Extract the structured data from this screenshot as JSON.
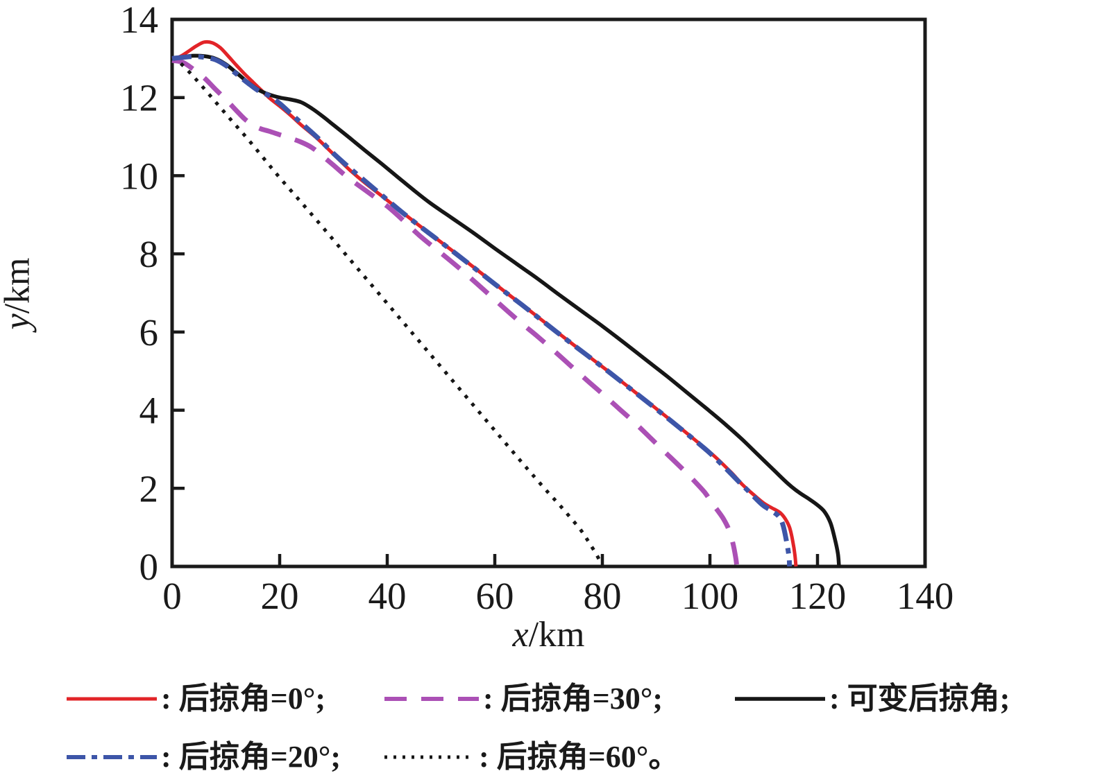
{
  "figure_background": "#ffffff",
  "axis_color": "#1a1a1a",
  "chart_data": {
    "type": "line",
    "title": "",
    "xlabel": "x/km",
    "ylabel": "y/km",
    "xlabel_var": "x",
    "xlabel_unit": "/km",
    "ylabel_var": "y",
    "ylabel_unit": "/km",
    "xlim": [
      0,
      140
    ],
    "ylim": [
      0,
      14
    ],
    "xticks": [
      0,
      20,
      40,
      60,
      80,
      100,
      120,
      140
    ],
    "yticks": [
      0,
      2,
      4,
      6,
      8,
      10,
      12,
      14
    ],
    "grid": false,
    "legend_position": "below",
    "series": [
      {
        "name": "后掠角=0°",
        "color": "#e22428",
        "style": "solid",
        "width": 5,
        "dash": [],
        "points": [
          [
            0,
            13.0
          ],
          [
            1.5,
            13.05
          ],
          [
            3,
            13.18
          ],
          [
            4.5,
            13.32
          ],
          [
            6,
            13.42
          ],
          [
            7.5,
            13.4
          ],
          [
            9,
            13.27
          ],
          [
            10.5,
            13.05
          ],
          [
            12,
            12.82
          ],
          [
            13.5,
            12.6
          ],
          [
            15,
            12.4
          ],
          [
            16.5,
            12.2
          ],
          [
            18,
            12.0
          ],
          [
            20,
            11.78
          ],
          [
            22,
            11.55
          ],
          [
            24,
            11.3
          ],
          [
            27,
            10.95
          ],
          [
            30,
            10.55
          ],
          [
            33,
            10.15
          ],
          [
            36,
            9.8
          ],
          [
            39,
            9.48
          ],
          [
            42,
            9.15
          ],
          [
            46,
            8.72
          ],
          [
            50,
            8.3
          ],
          [
            54,
            7.88
          ],
          [
            58,
            7.45
          ],
          [
            62,
            7.02
          ],
          [
            66,
            6.6
          ],
          [
            70,
            6.17
          ],
          [
            74,
            5.74
          ],
          [
            78,
            5.32
          ],
          [
            82,
            4.9
          ],
          [
            86,
            4.47
          ],
          [
            90,
            4.04
          ],
          [
            94,
            3.6
          ],
          [
            98,
            3.15
          ],
          [
            101,
            2.8
          ],
          [
            104,
            2.4
          ],
          [
            106,
            2.1
          ],
          [
            108,
            1.85
          ],
          [
            110,
            1.62
          ],
          [
            111.5,
            1.5
          ],
          [
            113,
            1.38
          ],
          [
            114,
            1.22
          ],
          [
            114.8,
            1.0
          ],
          [
            115.4,
            0.65
          ],
          [
            115.8,
            0.3
          ],
          [
            116,
            0
          ]
        ]
      },
      {
        "name": "可变后掠角",
        "color": "#161616",
        "style": "solid",
        "width": 5.5,
        "dash": [],
        "points": [
          [
            0,
            13.0
          ],
          [
            2,
            13.04
          ],
          [
            4,
            13.07
          ],
          [
            6,
            13.06
          ],
          [
            8,
            13.0
          ],
          [
            10,
            12.85
          ],
          [
            12,
            12.63
          ],
          [
            14,
            12.4
          ],
          [
            16,
            12.2
          ],
          [
            18,
            12.08
          ],
          [
            20,
            12.0
          ],
          [
            22,
            11.95
          ],
          [
            24,
            11.88
          ],
          [
            26,
            11.72
          ],
          [
            28,
            11.52
          ],
          [
            30,
            11.3
          ],
          [
            33,
            10.97
          ],
          [
            36,
            10.63
          ],
          [
            39,
            10.3
          ],
          [
            42,
            9.96
          ],
          [
            45,
            9.62
          ],
          [
            48,
            9.3
          ],
          [
            52,
            8.92
          ],
          [
            56,
            8.54
          ],
          [
            60,
            8.14
          ],
          [
            64,
            7.75
          ],
          [
            68,
            7.36
          ],
          [
            72,
            6.95
          ],
          [
            76,
            6.55
          ],
          [
            80,
            6.15
          ],
          [
            84,
            5.73
          ],
          [
            88,
            5.3
          ],
          [
            92,
            4.87
          ],
          [
            96,
            4.42
          ],
          [
            100,
            3.97
          ],
          [
            103,
            3.62
          ],
          [
            106,
            3.25
          ],
          [
            109,
            2.85
          ],
          [
            112,
            2.45
          ],
          [
            114.5,
            2.12
          ],
          [
            116.5,
            1.9
          ],
          [
            118.5,
            1.72
          ],
          [
            120,
            1.57
          ],
          [
            121.3,
            1.4
          ],
          [
            122.4,
            1.12
          ],
          [
            123.2,
            0.72
          ],
          [
            123.8,
            0.33
          ],
          [
            124,
            0
          ]
        ]
      },
      {
        "name": "后掠角=30°",
        "color": "#ab50b5",
        "style": "dashed",
        "width": 7,
        "dash": [
          33,
          21
        ],
        "points": [
          [
            0,
            12.95
          ],
          [
            2,
            12.9
          ],
          [
            4,
            12.72
          ],
          [
            6,
            12.5
          ],
          [
            8,
            12.22
          ],
          [
            10,
            11.95
          ],
          [
            12,
            11.66
          ],
          [
            13.5,
            11.45
          ],
          [
            15,
            11.3
          ],
          [
            16.5,
            11.2
          ],
          [
            18,
            11.14
          ],
          [
            20,
            11.05
          ],
          [
            22,
            10.96
          ],
          [
            24,
            10.86
          ],
          [
            26,
            10.72
          ],
          [
            28,
            10.5
          ],
          [
            30,
            10.27
          ],
          [
            32,
            10.03
          ],
          [
            34,
            9.82
          ],
          [
            36,
            9.62
          ],
          [
            38,
            9.42
          ],
          [
            40,
            9.22
          ],
          [
            42,
            8.98
          ],
          [
            44,
            8.72
          ],
          [
            46,
            8.47
          ],
          [
            48,
            8.24
          ],
          [
            50,
            8.02
          ],
          [
            53,
            7.68
          ],
          [
            56,
            7.32
          ],
          [
            59,
            6.95
          ],
          [
            62,
            6.58
          ],
          [
            65,
            6.22
          ],
          [
            68,
            5.88
          ],
          [
            71,
            5.52
          ],
          [
            74,
            5.15
          ],
          [
            77,
            4.78
          ],
          [
            80,
            4.42
          ],
          [
            83,
            4.05
          ],
          [
            86,
            3.68
          ],
          [
            89,
            3.28
          ],
          [
            92,
            2.88
          ],
          [
            95,
            2.48
          ],
          [
            97,
            2.2
          ],
          [
            99,
            1.9
          ],
          [
            100.5,
            1.6
          ],
          [
            101.5,
            1.42
          ],
          [
            102.5,
            1.22
          ],
          [
            103.5,
            0.95
          ],
          [
            104.3,
            0.58
          ],
          [
            104.8,
            0.22
          ],
          [
            105,
            0
          ]
        ]
      },
      {
        "name": "后掠角=20°",
        "color": "#3d55a8",
        "style": "dashdot",
        "width": 7,
        "dash": [
          28,
          10,
          8,
          10
        ],
        "points": [
          [
            0,
            13.0
          ],
          [
            2,
            13.03
          ],
          [
            4,
            13.05
          ],
          [
            6,
            13.03
          ],
          [
            8,
            12.97
          ],
          [
            10,
            12.82
          ],
          [
            12,
            12.6
          ],
          [
            14,
            12.38
          ],
          [
            16,
            12.18
          ],
          [
            18,
            12.05
          ],
          [
            20,
            11.85
          ],
          [
            22,
            11.6
          ],
          [
            24,
            11.35
          ],
          [
            27,
            10.98
          ],
          [
            30,
            10.57
          ],
          [
            33,
            10.2
          ],
          [
            36,
            9.85
          ],
          [
            39,
            9.5
          ],
          [
            42,
            9.15
          ],
          [
            45,
            8.82
          ],
          [
            49,
            8.4
          ],
          [
            53,
            7.98
          ],
          [
            57,
            7.55
          ],
          [
            61,
            7.12
          ],
          [
            65,
            6.7
          ],
          [
            69,
            6.27
          ],
          [
            73,
            5.84
          ],
          [
            77,
            5.42
          ],
          [
            81,
            5.0
          ],
          [
            85,
            4.57
          ],
          [
            89,
            4.14
          ],
          [
            93,
            3.7
          ],
          [
            97,
            3.25
          ],
          [
            100,
            2.9
          ],
          [
            103,
            2.5
          ],
          [
            105,
            2.22
          ],
          [
            107,
            1.95
          ],
          [
            108.8,
            1.7
          ],
          [
            110,
            1.55
          ],
          [
            111.5,
            1.42
          ],
          [
            112.8,
            1.28
          ],
          [
            113.6,
            1.05
          ],
          [
            114.3,
            0.6
          ],
          [
            114.7,
            0.25
          ],
          [
            114.8,
            0
          ]
        ]
      },
      {
        "name": "后掠角=60°",
        "color": "#161616",
        "style": "dotted",
        "width": 5,
        "dash": [
          5,
          10
        ],
        "points": [
          [
            0,
            13.0
          ],
          [
            1,
            12.95
          ],
          [
            3,
            12.68
          ],
          [
            5,
            12.38
          ],
          [
            8,
            11.9
          ],
          [
            11,
            11.42
          ],
          [
            14,
            10.95
          ],
          [
            17,
            10.45
          ],
          [
            20,
            9.95
          ],
          [
            24,
            9.32
          ],
          [
            28,
            8.68
          ],
          [
            32,
            8.03
          ],
          [
            36,
            7.38
          ],
          [
            40,
            6.73
          ],
          [
            44,
            6.08
          ],
          [
            48,
            5.43
          ],
          [
            52,
            4.78
          ],
          [
            56,
            4.13
          ],
          [
            60,
            3.48
          ],
          [
            64,
            2.83
          ],
          [
            67,
            2.35
          ],
          [
            70,
            1.88
          ],
          [
            72,
            1.58
          ],
          [
            74,
            1.26
          ],
          [
            76,
            0.93
          ],
          [
            77.5,
            0.62
          ],
          [
            79,
            0.28
          ],
          [
            80,
            0
          ]
        ]
      }
    ],
    "legend": [
      {
        "label": ": 后掠角=0°;",
        "series": 0,
        "row": 1
      },
      {
        "label": ": 后掠角=30°;",
        "series": 2,
        "row": 1
      },
      {
        "label": ": 可变后掠角;",
        "series": 1,
        "row": 1
      },
      {
        "label": ": 后掠角=20°;",
        "series": 3,
        "row": 2
      },
      {
        "label": ": 后掠角=60°。",
        "series": 4,
        "row": 2
      }
    ]
  }
}
